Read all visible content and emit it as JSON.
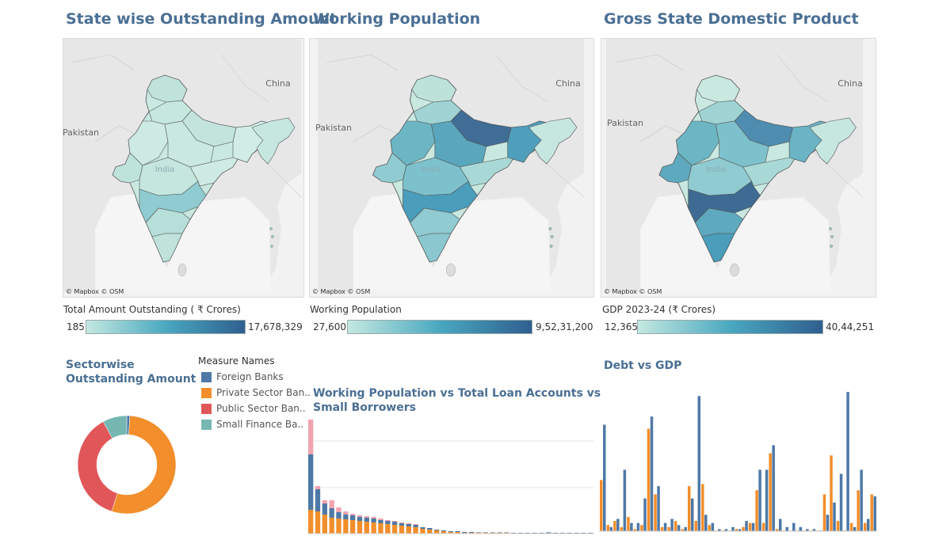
{
  "maps": [
    {
      "title": "State wise Outstanding Amount",
      "credit": "© Mapbox © OSM",
      "labels": {
        "china": "China",
        "pakistan": "Pakistan",
        "india": "India"
      },
      "legend_title": "Total Amount Outstanding ( ₹ Crores)",
      "min": "185",
      "max": "17,678,329"
    },
    {
      "title": "Working Population",
      "credit": "© Mapbox © OSM",
      "labels": {
        "china": "China",
        "pakistan": "Pakistan",
        "india": "India"
      },
      "legend_title": "Working Population",
      "min": "27,600",
      "max": "9,52,31,200"
    },
    {
      "title": "Gross State Domestic Product",
      "credit": "© Mapbox © OSM",
      "labels": {
        "china": "China",
        "pakistan": "Pakistan",
        "india": "India"
      },
      "legend_title": "GDP 2023-24 (₹ Crores)",
      "min": "12,365",
      "max": "40,44,251"
    }
  ],
  "colors": {
    "foreign": "#4e79a7",
    "private": "#f28e2b",
    "public": "#e15759",
    "small_finance": "#76b7b2",
    "pink": "#f4a3b0",
    "title": "#4a6f94"
  },
  "sector": {
    "title_line1": "Sectorwise",
    "title_line2": "Outstanding Amount",
    "legend_title": "Measure Names",
    "legend": [
      {
        "label": "Foreign Banks",
        "color": "#4e79a7"
      },
      {
        "label": "Private Sector Ban..",
        "color": "#f28e2b"
      },
      {
        "label": "Public Sector Ban..",
        "color": "#e15759"
      },
      {
        "label": "Small Finance Ba..",
        "color": "#76b7b2"
      }
    ]
  },
  "working_chart": {
    "title_line1": "Working Population vs Total Loan Accounts vs",
    "title_line2": "Small Borrowers"
  },
  "debt_chart": {
    "title": "Debt vs GDP"
  },
  "chart_data": [
    {
      "type": "pie",
      "title": "Sectorwise Outstanding Amount",
      "categories": [
        "Foreign Banks",
        "Private Sector Banks",
        "Public Sector Banks",
        "Small Finance Banks"
      ],
      "values": [
        1,
        54,
        37,
        8
      ]
    },
    {
      "type": "bar",
      "title": "Working Population vs Total Loan Accounts vs Small Borrowers",
      "series": [
        {
          "name": "",
          "values": [
            30,
            28,
            24,
            20,
            19,
            18,
            17,
            16,
            15,
            14,
            13,
            12,
            11,
            10,
            9,
            8,
            6,
            5,
            4,
            3,
            2,
            2,
            1,
            1,
            1,
            1,
            1,
            1,
            1,
            0.5,
            0.5,
            0.5,
            0.5,
            0.5,
            0.5,
            0.5,
            0.5,
            0.5,
            0.5,
            0.5,
            0.5
          ]
        },
        {
          "name": "",
          "values": [
            70,
            28,
            14,
            12,
            8,
            6,
            6,
            5,
            5,
            5,
            4,
            4,
            4,
            3,
            3,
            3,
            2,
            2,
            1,
            1,
            1,
            1,
            1,
            1,
            0.5,
            0.5,
            0.5,
            0.5,
            0.5,
            0.5,
            0.5,
            0.5,
            0.5,
            0.5,
            1,
            0.5,
            0.5,
            0.5,
            0.5,
            0.5,
            0.5
          ]
        },
        {
          "name": "",
          "values": [
            45,
            4,
            4,
            10,
            6,
            4,
            2,
            2,
            2,
            2,
            2,
            1,
            1,
            1,
            1,
            1,
            0,
            0,
            0,
            0,
            0,
            0,
            0,
            0,
            0,
            0,
            0,
            0,
            0,
            0,
            0,
            0,
            0,
            0,
            0,
            0,
            0,
            0,
            0,
            0,
            0
          ]
        }
      ]
    },
    {
      "type": "bar",
      "title": "Debt vs GDP",
      "series": [
        {
          "name": "",
          "values": [
            25,
            3,
            5,
            2,
            7,
            1,
            3,
            50,
            18,
            2,
            2,
            5,
            1,
            22,
            5,
            23,
            3,
            0,
            0,
            0,
            1,
            2,
            4,
            20,
            4,
            38,
            1,
            0,
            0,
            0,
            0,
            0,
            0,
            18,
            37,
            5,
            0,
            4,
            20,
            4,
            18
          ]
        },
        {
          "name": "",
          "values": [
            52,
            2,
            6,
            30,
            4,
            4,
            16,
            56,
            22,
            4,
            6,
            3,
            2,
            16,
            66,
            8,
            4,
            1,
            1,
            2,
            1,
            5,
            4,
            30,
            30,
            42,
            6,
            2,
            4,
            2,
            1,
            1,
            0,
            8,
            14,
            28,
            68,
            2,
            30,
            6,
            17
          ]
        }
      ]
    }
  ]
}
